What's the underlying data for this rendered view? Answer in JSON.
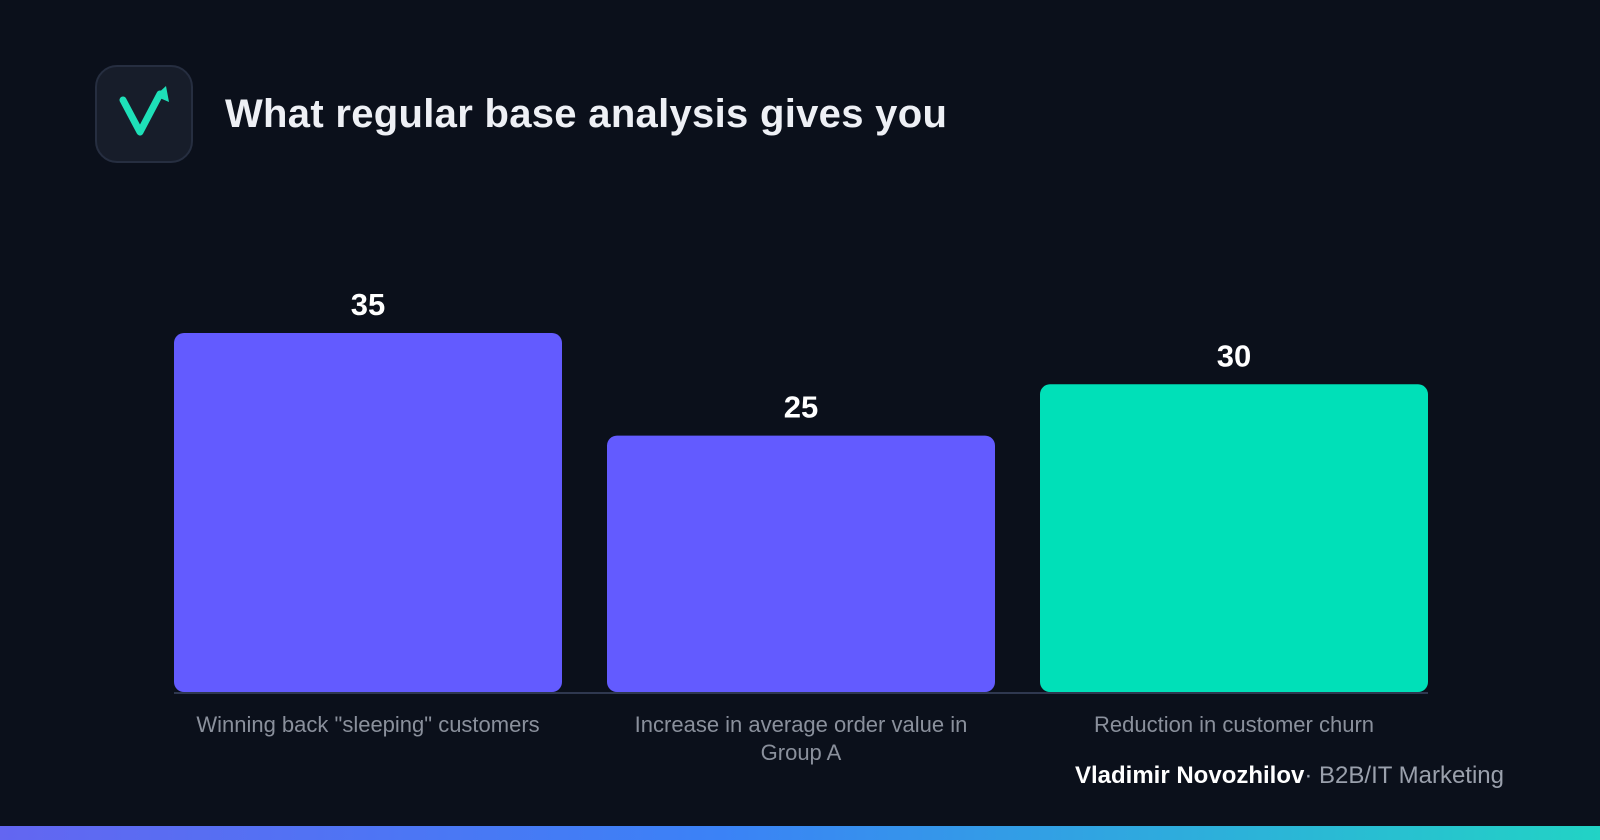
{
  "header": {
    "title": "What regular base analysis gives you",
    "logo_icon": "check-arrow-icon",
    "logo_color": "#1ee0b8"
  },
  "chart_data": {
    "type": "bar",
    "categories": [
      "Winning back \"sleeping\" customers",
      "Increase in average order value in Group A",
      "Reduction in customer churn"
    ],
    "values": [
      35,
      25,
      30
    ],
    "colors": [
      "#635bff",
      "#635bff",
      "#00e0b8"
    ],
    "title": "",
    "xlabel": "",
    "ylabel": "",
    "ylim": [
      0,
      35
    ],
    "grid": false,
    "legend": "none"
  },
  "footer": {
    "author": "Vladimir Novozhilov",
    "separator": "·",
    "role": "B2B/IT Marketing"
  },
  "accent_gradient": [
    "#6366f1",
    "#3b82f6",
    "#22d3c5"
  ]
}
